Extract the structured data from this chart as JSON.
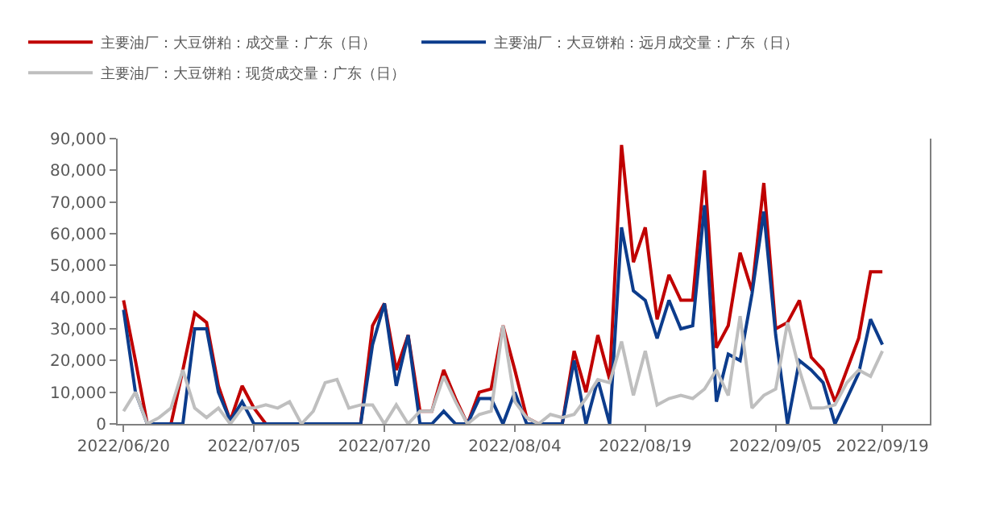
{
  "chart_data": {
    "type": "line",
    "categories": [
      "2022/06/20",
      null,
      null,
      null,
      null,
      null,
      null,
      null,
      null,
      null,
      null,
      "2022/07/05",
      null,
      null,
      null,
      null,
      null,
      null,
      null,
      null,
      null,
      null,
      "2022/07/20",
      null,
      null,
      null,
      null,
      null,
      null,
      null,
      null,
      null,
      null,
      "2022/08/04",
      null,
      null,
      null,
      null,
      null,
      null,
      null,
      null,
      null,
      null,
      "2022/08/19",
      null,
      null,
      null,
      null,
      null,
      null,
      null,
      null,
      null,
      null,
      "2022/09/05",
      null,
      null,
      null,
      null,
      null,
      null,
      null,
      null,
      "2022/09/19"
    ],
    "series": [
      {
        "name": "主要油厂：大豆饼粕：成交量：广东（日）",
        "color": "#c00000",
        "values": [
          39000,
          20000,
          0,
          0,
          0,
          17000,
          35000,
          32000,
          12000,
          1000,
          12000,
          5000,
          0,
          0,
          0,
          0,
          0,
          0,
          0,
          0,
          0,
          31000,
          38000,
          17000,
          28000,
          4000,
          4000,
          17000,
          8000,
          0,
          10000,
          11000,
          31000,
          17000,
          2000,
          0,
          0,
          0,
          23000,
          10000,
          28000,
          14000,
          88000,
          51000,
          62000,
          33000,
          47000,
          39000,
          39000,
          80000,
          24000,
          31000,
          54000,
          42000,
          76000,
          30000,
          32000,
          39000,
          21000,
          17000,
          7000,
          17000,
          27000,
          48000,
          48000
        ]
      },
      {
        "name": "主要油厂：大豆饼粕：远月成交量：广东（日）",
        "color": "#0c3c8c",
        "values": [
          36000,
          10000,
          0,
          0,
          0,
          0,
          30000,
          30000,
          10000,
          1000,
          7000,
          0,
          0,
          0,
          0,
          0,
          0,
          0,
          0,
          0,
          0,
          25000,
          38000,
          12000,
          28000,
          0,
          0,
          4000,
          0,
          0,
          8000,
          8000,
          0,
          10000,
          0,
          0,
          0,
          0,
          20000,
          0,
          14000,
          0,
          62000,
          42000,
          39000,
          27000,
          39000,
          30000,
          31000,
          69000,
          7000,
          22000,
          20000,
          41000,
          67000,
          28000,
          0,
          20000,
          17000,
          13000,
          0,
          8000,
          16000,
          33000,
          25000
        ]
      },
      {
        "name": "主要油厂：大豆饼粕：现货成交量：广东（日）",
        "color": "#bfbfbf",
        "values": [
          4000,
          10000,
          0,
          2000,
          5000,
          17000,
          5000,
          2000,
          5000,
          0,
          5000,
          5000,
          6000,
          5000,
          7000,
          0,
          4000,
          13000,
          14000,
          5000,
          6000,
          6000,
          0,
          6000,
          0,
          4000,
          4000,
          15000,
          7000,
          0,
          3000,
          4000,
          31000,
          7000,
          2000,
          0,
          3000,
          2000,
          3000,
          8000,
          14000,
          13000,
          26000,
          9000,
          23000,
          6000,
          8000,
          9000,
          8000,
          11000,
          17000,
          9000,
          34000,
          5000,
          9000,
          11000,
          32000,
          17000,
          5000,
          5000,
          6000,
          13000,
          17000,
          15000,
          23000
        ]
      }
    ],
    "ylim": [
      0,
      90000
    ],
    "yticks": [
      0,
      {
        "value": 10000,
        "label": "10,000"
      },
      {
        "value": 20000,
        "label": "20,000"
      },
      {
        "value": 30000,
        "label": "30,000"
      },
      {
        "value": 40000,
        "label": "40,000"
      },
      {
        "value": 50000,
        "label": "50,000"
      },
      {
        "value": 60000,
        "label": "60,000"
      },
      {
        "value": 70000,
        "label": "70,000"
      },
      {
        "value": 80000,
        "label": "80,000"
      },
      {
        "value": 90000,
        "label": "90,000"
      }
    ],
    "grid": false,
    "legend": "top left",
    "marker": "none",
    "line_style": "solid"
  }
}
